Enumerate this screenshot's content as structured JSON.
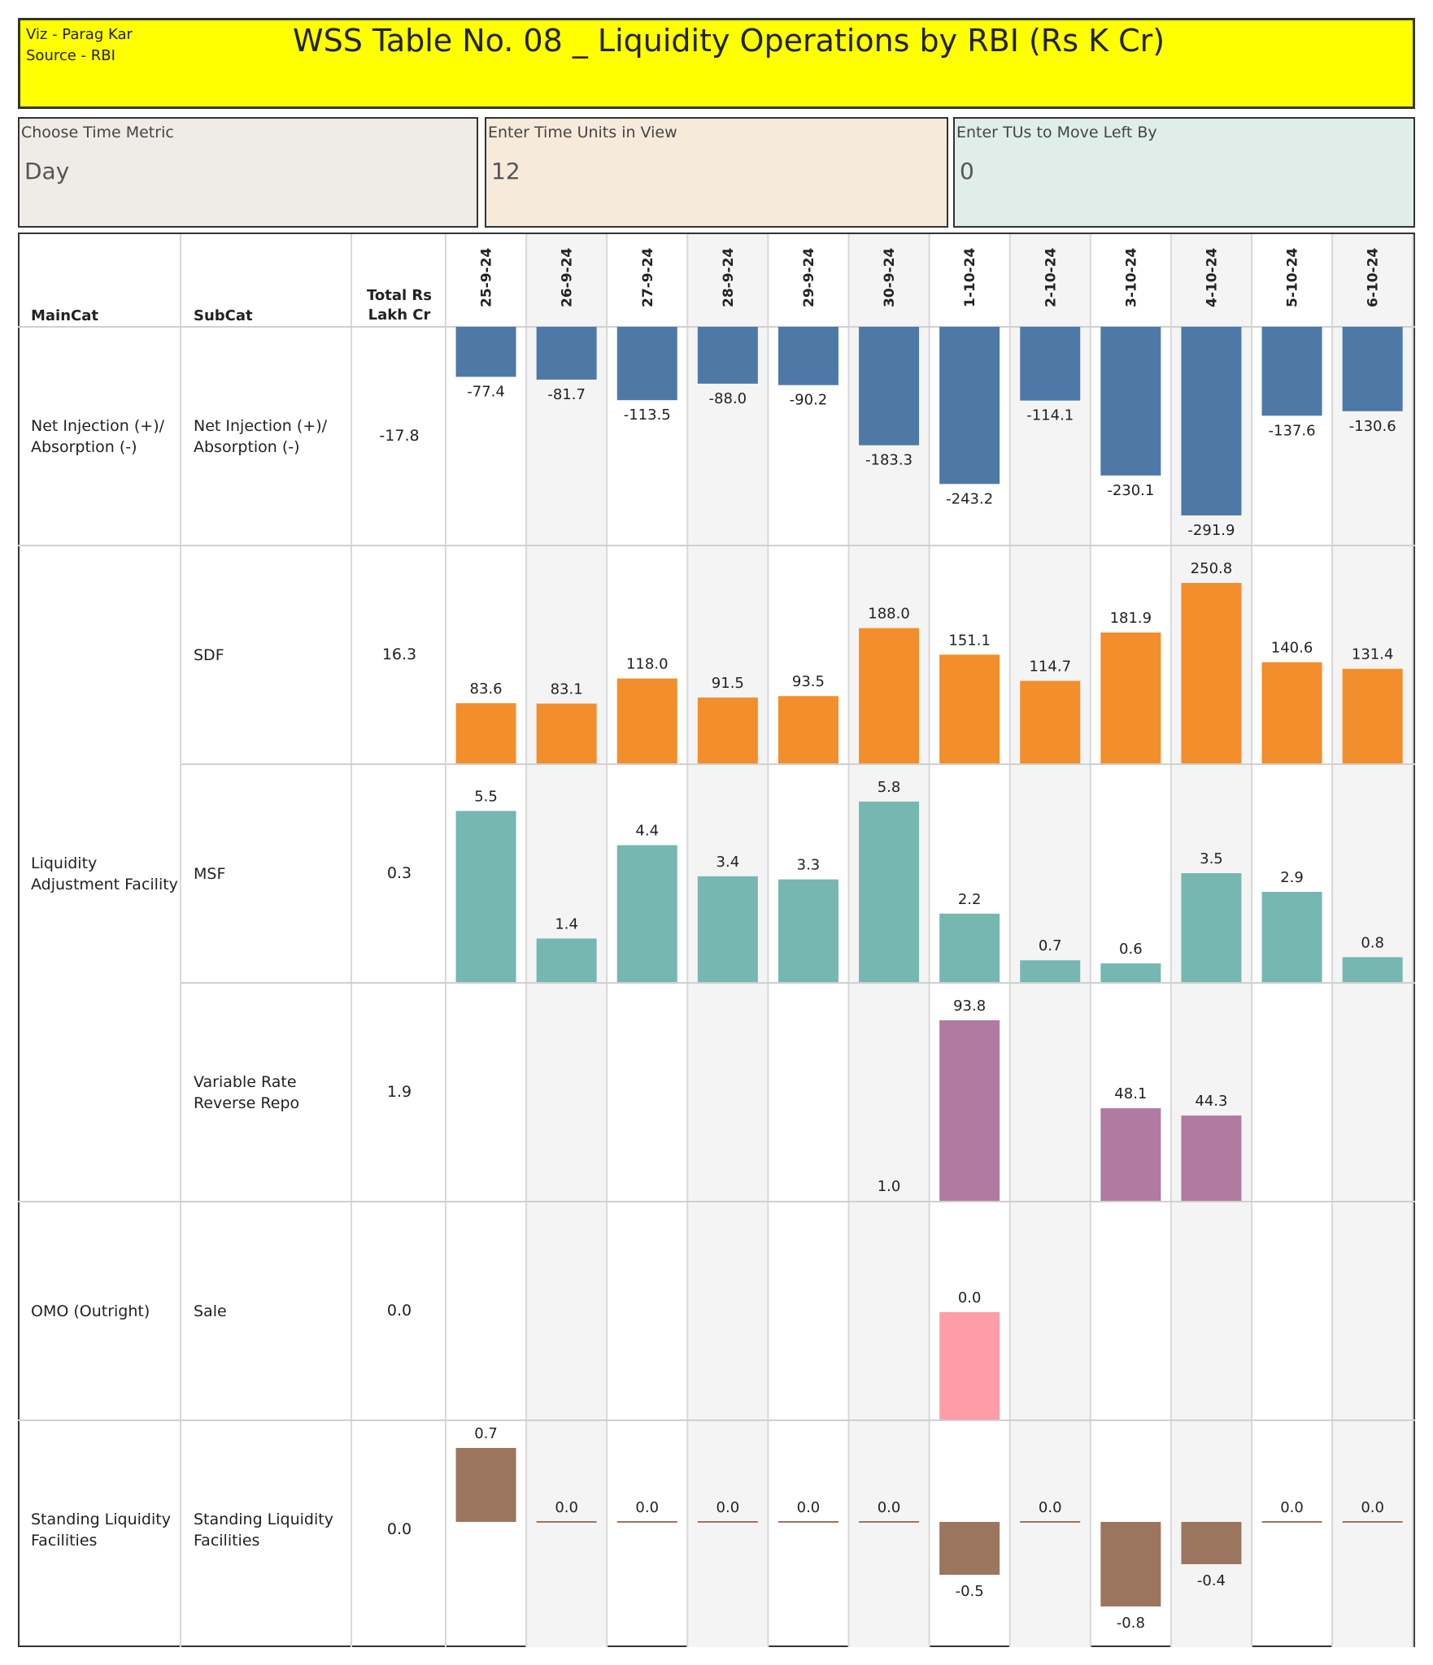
{
  "header": {
    "credit_line1": "Viz - Parag Kar",
    "credit_line2": "Source - RBI",
    "title": "WSS Table No. 08 _ Liquidity Operations by RBI (Rs K Cr)"
  },
  "parameters": [
    {
      "label": "Choose Time Metric",
      "value": "Day",
      "bg": "#efebe6"
    },
    {
      "label": "Enter Time Units in View",
      "value": "12",
      "bg": "#f6eadb"
    },
    {
      "label": "Enter TUs to Move Left By",
      "value": "0",
      "bg": "#e0eeea"
    }
  ],
  "table_headers": {
    "maincat": "MainCat",
    "subcat": "SubCat",
    "total_line1": "Total Rs",
    "total_line2": "Lakh Cr"
  },
  "chart_data": {
    "type": "bar",
    "title": "WSS Table No. 08 _ Liquidity Operations by RBI (Rs K Cr)",
    "categories": [
      "25-9-24",
      "26-9-24",
      "27-9-24",
      "28-9-24",
      "29-9-24",
      "30-9-24",
      "1-10-24",
      "2-10-24",
      "3-10-24",
      "4-10-24",
      "5-10-24",
      "6-10-24"
    ],
    "rows": [
      {
        "maincat_lines": [
          "Net Injection (+)/",
          "Absorption (-)"
        ],
        "subcat_lines": [
          "Net Injection (+)/",
          "Absorption (-)"
        ],
        "total": "-17.8",
        "color": "#4e79a7",
        "baseline": "top",
        "max_abs": 291.9,
        "row_group": 0,
        "values": [
          -77.4,
          -81.7,
          -113.5,
          -88.0,
          -90.2,
          -183.3,
          -243.2,
          -114.1,
          -230.1,
          -291.9,
          -137.6,
          -130.6
        ],
        "labels": [
          "-77.4",
          "-81.7",
          "-113.5",
          "-88.0",
          "-90.2",
          "-183.3",
          "-243.2",
          "-114.1",
          "-230.1",
          "-291.9",
          "-137.6",
          "-130.6"
        ]
      },
      {
        "maincat_lines": [],
        "subcat_lines": [
          "SDF"
        ],
        "total": "16.3",
        "color": "#f28e2b",
        "baseline": "bottom",
        "max_abs": 250.8,
        "row_group": 1,
        "values": [
          83.6,
          83.1,
          118.0,
          91.5,
          93.5,
          188.0,
          151.1,
          114.7,
          181.9,
          250.8,
          140.6,
          131.4
        ],
        "labels": [
          "83.6",
          "83.1",
          "118.0",
          "91.5",
          "93.5",
          "188.0",
          "151.1",
          "114.7",
          "181.9",
          "250.8",
          "140.6",
          "131.4"
        ]
      },
      {
        "maincat_lines": [
          "Liquidity",
          "Adjustment Facility"
        ],
        "subcat_lines": [
          "MSF"
        ],
        "total": "0.3",
        "color": "#76b7b2",
        "baseline": "bottom",
        "max_abs": 5.8,
        "row_group": 1,
        "values": [
          5.5,
          1.4,
          4.4,
          3.4,
          3.3,
          5.8,
          2.2,
          0.7,
          0.6,
          3.5,
          2.9,
          0.8
        ],
        "labels": [
          "5.5",
          "1.4",
          "4.4",
          "3.4",
          "3.3",
          "5.8",
          "2.2",
          "0.7",
          "0.6",
          "3.5",
          "2.9",
          "0.8"
        ]
      },
      {
        "maincat_lines": [],
        "subcat_lines": [
          "Variable Rate",
          "Reverse Repo"
        ],
        "total": "1.9",
        "color": "#b07aa1",
        "baseline": "bottom",
        "max_abs": 93.8,
        "row_group": 1,
        "values": [
          null,
          null,
          null,
          null,
          null,
          1.0,
          93.8,
          null,
          48.1,
          44.3,
          null,
          null
        ],
        "labels": [
          null,
          null,
          null,
          null,
          null,
          "1.0",
          "93.8",
          null,
          "48.1",
          "44.3",
          null,
          null
        ]
      },
      {
        "maincat_lines": [
          "OMO (Outright)"
        ],
        "subcat_lines": [
          "Sale"
        ],
        "total": "0.0",
        "color": "#ff9da7",
        "baseline": "bottom",
        "max_abs": 0.0,
        "row_group": 2,
        "values": [
          null,
          null,
          null,
          null,
          null,
          null,
          0.0,
          null,
          null,
          null,
          null,
          null
        ],
        "labels": [
          null,
          null,
          null,
          null,
          null,
          null,
          "0.0",
          null,
          null,
          null,
          null,
          null
        ]
      },
      {
        "maincat_lines": [
          "Standing Liquidity",
          "Facilities"
        ],
        "subcat_lines": [
          "Standing Liquidity",
          "Facilities"
        ],
        "total": "0.0",
        "color": "#9c755f",
        "baseline": "middle",
        "max_abs": 0.8,
        "row_group": 3,
        "values": [
          0.7,
          0.0,
          0.0,
          0.0,
          0.0,
          0.0,
          -0.5,
          0.0,
          -0.8,
          -0.4,
          0.0,
          0.0
        ],
        "labels": [
          "0.7",
          "0.0",
          "0.0",
          "0.0",
          "0.0",
          "0.0",
          "-0.5",
          "0.0",
          "-0.8",
          "-0.4",
          "0.0",
          "0.0"
        ]
      }
    ]
  }
}
